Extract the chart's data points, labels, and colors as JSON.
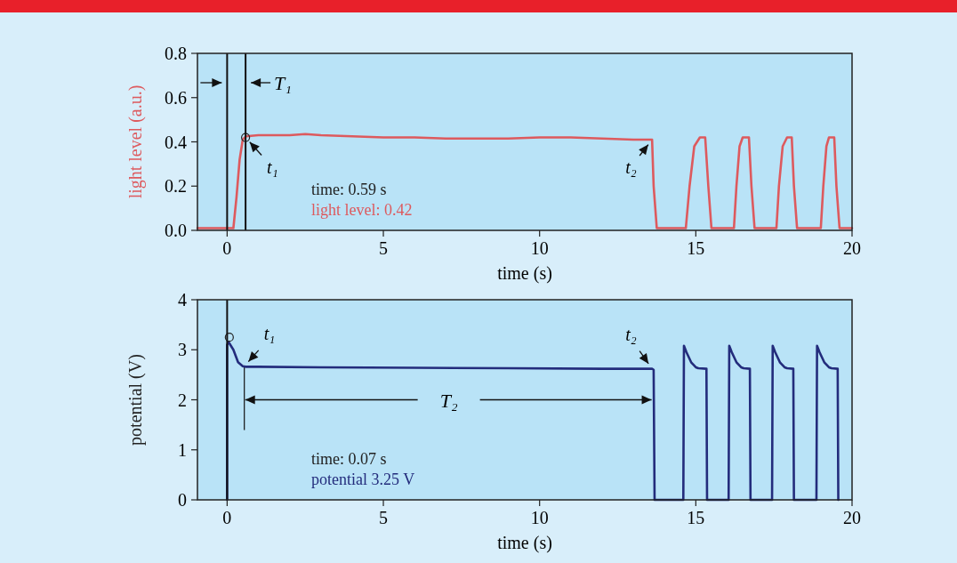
{
  "chart_data": [
    {
      "type": "line",
      "xlabel": "time (s)",
      "ylabel": "light level (a.u.)",
      "xlim": [
        -0.95,
        20
      ],
      "ylim": [
        0,
        0.8
      ],
      "xticks": [
        0,
        5,
        10,
        15,
        20
      ],
      "yticks": [
        {
          "value": 0,
          "label": "0.0"
        },
        {
          "value": 0.2,
          "label": "0.2"
        },
        {
          "value": 0.4,
          "label": "0.4"
        },
        {
          "value": 0.6,
          "label": "0.6"
        },
        {
          "value": 0.8,
          "label": "0.8"
        }
      ],
      "series": [
        {
          "color": "#dd5a5e",
          "x": [
            -0.95,
            0.2,
            0.3,
            0.4,
            0.5,
            0.6,
            1,
            2,
            2.5,
            3,
            4,
            5,
            6,
            7,
            8,
            9,
            10,
            10.5,
            11,
            12,
            13,
            13.5,
            13.6,
            13.65,
            13.75,
            14.68,
            14.8,
            14.95,
            15.13,
            15.3,
            15.4,
            15.5,
            16.22,
            16.3,
            16.4,
            16.5,
            16.7,
            16.78,
            16.88,
            17.58,
            17.66,
            17.78,
            17.92,
            18.07,
            18.14,
            18.24,
            19.0,
            19.08,
            19.18,
            19.26,
            19.43,
            19.5,
            19.6,
            20
          ],
          "values": [
            0.01,
            0.01,
            0.15,
            0.32,
            0.41,
            0.425,
            0.43,
            0.43,
            0.435,
            0.43,
            0.425,
            0.42,
            0.42,
            0.415,
            0.415,
            0.415,
            0.42,
            0.42,
            0.42,
            0.415,
            0.41,
            0.41,
            0.41,
            0.2,
            0.01,
            0.01,
            0.2,
            0.38,
            0.42,
            0.42,
            0.2,
            0.01,
            0.01,
            0.2,
            0.38,
            0.42,
            0.42,
            0.2,
            0.01,
            0.01,
            0.2,
            0.38,
            0.42,
            0.42,
            0.2,
            0.01,
            0.01,
            0.2,
            0.38,
            0.42,
            0.42,
            0.2,
            0.01,
            0.01
          ]
        },
        {
          "type": "scatter",
          "color": "#222222",
          "x": [
            0.59
          ],
          "values": [
            0.42
          ]
        }
      ],
      "ref_lines": [
        {
          "axis": "x",
          "value": 0
        },
        {
          "axis": "x",
          "value": 0.59,
          "label": "T₁"
        }
      ],
      "annotations": [
        {
          "text": "t₁",
          "x": 0.59,
          "y": 0.42
        },
        {
          "text": "t₂",
          "x": 13.6,
          "y": 0.41
        },
        "time: 0.59 s",
        "light level: 0.42"
      ]
    },
    {
      "type": "line",
      "xlabel": "time (s)",
      "ylabel": "potential (V)",
      "xlim": [
        -0.95,
        20
      ],
      "ylim": [
        0,
        4
      ],
      "xticks": [
        0,
        5,
        10,
        15,
        20
      ],
      "yticks": [
        0,
        1,
        2,
        3,
        4
      ],
      "series": [
        {
          "color": "#232c7c",
          "x": [
            0,
            0,
            0.05,
            0.2,
            0.35,
            0.5,
            0.6,
            1,
            3,
            6,
            9,
            12,
            13.6,
            13.65,
            13.68,
            14.6,
            14.62,
            14.7,
            14.85,
            15.0,
            15.08,
            15.34,
            15.36,
            16.05,
            16.07,
            16.15,
            16.3,
            16.45,
            16.53,
            16.73,
            16.75,
            17.44,
            17.46,
            17.54,
            17.69,
            17.84,
            17.92,
            18.12,
            18.14,
            18.86,
            18.88,
            18.96,
            19.11,
            19.26,
            19.34,
            19.54,
            19.56
          ],
          "values": [
            0,
            3.1,
            3.15,
            3.0,
            2.75,
            2.67,
            2.66,
            2.66,
            2.65,
            2.64,
            2.63,
            2.62,
            2.62,
            2.6,
            0,
            0,
            3.08,
            2.95,
            2.75,
            2.65,
            2.63,
            2.62,
            0,
            0,
            3.08,
            2.95,
            2.75,
            2.65,
            2.63,
            2.62,
            0,
            0,
            3.08,
            2.95,
            2.75,
            2.65,
            2.63,
            2.62,
            0,
            0,
            3.08,
            2.95,
            2.75,
            2.65,
            2.63,
            2.62,
            0
          ]
        },
        {
          "type": "scatter",
          "color": "#222222",
          "x": [
            0.07
          ],
          "values": [
            3.25
          ]
        }
      ],
      "ref_lines": [
        {
          "axis": "x",
          "value": 0
        }
      ],
      "annotations": [
        {
          "text": "t₁",
          "x": 0.55,
          "y": 2.67
        },
        {
          "text": "t₂",
          "x": 13.6,
          "y": 2.62
        },
        {
          "text": "T₂",
          "x": 13.64,
          "y": 2
        },
        "time: 0.07 s",
        "potential 3.25 V"
      ]
    }
  ]
}
